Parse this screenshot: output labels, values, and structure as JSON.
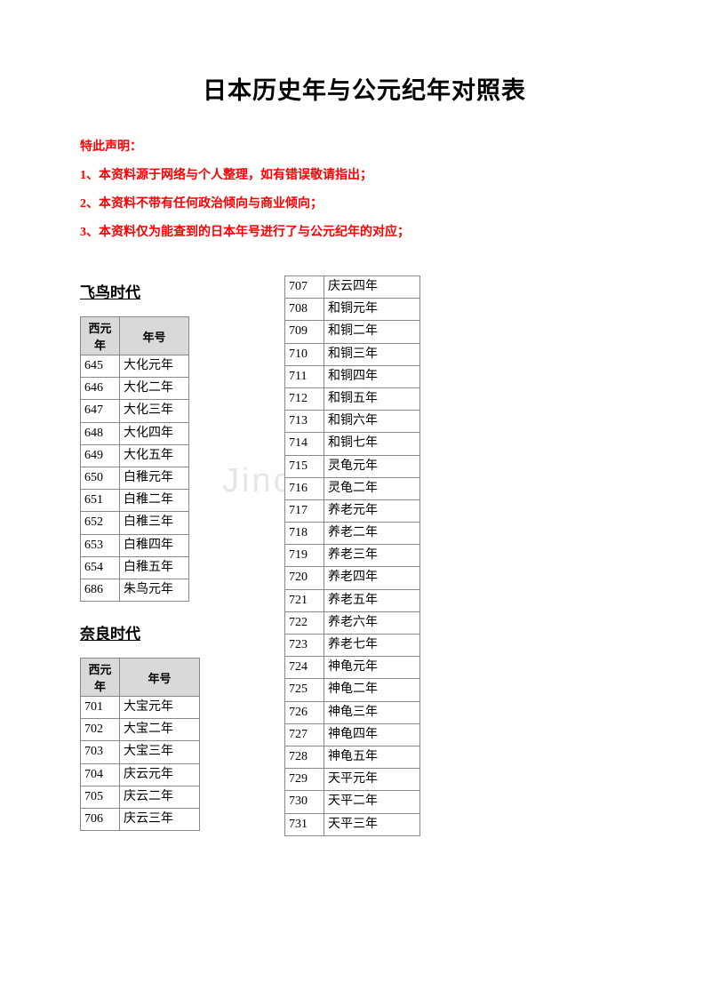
{
  "title": "日本历史年与公元纪年对照表",
  "declaration": {
    "header": "特此声明：",
    "lines": [
      "1、本资料源于网络与个人整理，如有错误敬请指出；",
      "2、本资料不带有任何政治倾向与商业倾向；",
      "3、本资料仅为能查到的日本年号进行了与公元纪年的对应；"
    ]
  },
  "headers": {
    "year": "西元年",
    "era": "年号"
  },
  "sections": {
    "asuka": {
      "title": "飞鸟时代",
      "rows": [
        {
          "y": "645",
          "e": "大化元年"
        },
        {
          "y": "646",
          "e": "大化二年"
        },
        {
          "y": "647",
          "e": "大化三年"
        },
        {
          "y": "648",
          "e": "大化四年"
        },
        {
          "y": "649",
          "e": "大化五年"
        },
        {
          "y": "650",
          "e": "白稚元年"
        },
        {
          "y": "651",
          "e": "白稚二年"
        },
        {
          "y": "652",
          "e": "白稚三年"
        },
        {
          "y": "653",
          "e": "白稚四年"
        },
        {
          "y": "654",
          "e": "白稚五年"
        },
        {
          "y": "686",
          "e": "朱鸟元年"
        }
      ]
    },
    "nara": {
      "title": "奈良时代",
      "rows1": [
        {
          "y": "701",
          "e": "大宝元年"
        },
        {
          "y": "702",
          "e": "大宝二年"
        },
        {
          "y": "703",
          "e": "大宝三年"
        },
        {
          "y": "704",
          "e": "庆云元年"
        },
        {
          "y": "705",
          "e": "庆云二年"
        },
        {
          "y": "706",
          "e": "庆云三年"
        }
      ],
      "rows2": [
        {
          "y": "707",
          "e": "庆云四年"
        },
        {
          "y": "708",
          "e": "和铜元年"
        },
        {
          "y": "709",
          "e": "和铜二年"
        },
        {
          "y": "710",
          "e": "和铜三年"
        },
        {
          "y": "711",
          "e": "和铜四年"
        },
        {
          "y": "712",
          "e": "和铜五年"
        },
        {
          "y": "713",
          "e": "和铜六年"
        },
        {
          "y": "714",
          "e": "和铜七年"
        },
        {
          "y": "715",
          "e": "灵龟元年"
        },
        {
          "y": "716",
          "e": "灵龟二年"
        },
        {
          "y": "717",
          "e": "养老元年"
        },
        {
          "y": "718",
          "e": "养老二年"
        },
        {
          "y": "719",
          "e": "养老三年"
        },
        {
          "y": "720",
          "e": "养老四年"
        },
        {
          "y": "721",
          "e": "养老五年"
        },
        {
          "y": "722",
          "e": "养老六年"
        },
        {
          "y": "723",
          "e": "养老七年"
        },
        {
          "y": "724",
          "e": "神龟元年"
        },
        {
          "y": "725",
          "e": "神龟二年"
        },
        {
          "y": "726",
          "e": "神龟三年"
        },
        {
          "y": "727",
          "e": "神龟四年"
        },
        {
          "y": "728",
          "e": "神龟五年"
        },
        {
          "y": "729",
          "e": "天平元年"
        },
        {
          "y": "730",
          "e": "天平二年"
        },
        {
          "y": "731",
          "e": "天平三年"
        }
      ]
    }
  },
  "watermark": "Jinchutou"
}
